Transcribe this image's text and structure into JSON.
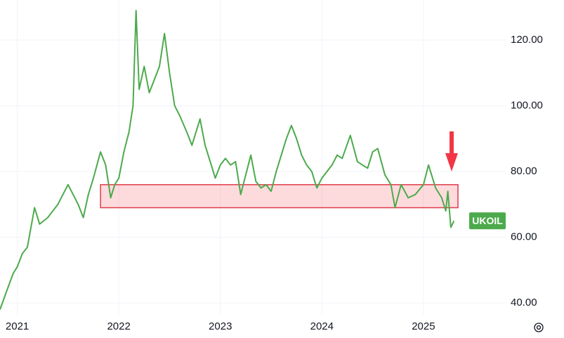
{
  "chart_data": {
    "type": "line",
    "x": [
      2020.83,
      2020.9,
      2020.96,
      2021.0,
      2021.05,
      2021.1,
      2021.17,
      2021.22,
      2021.3,
      2021.35,
      2021.4,
      2021.45,
      2021.5,
      2021.55,
      2021.6,
      2021.65,
      2021.7,
      2021.75,
      2021.82,
      2021.87,
      2021.92,
      2021.96,
      2022.0,
      2022.05,
      2022.1,
      2022.14,
      2022.17,
      2022.2,
      2022.25,
      2022.3,
      2022.35,
      2022.4,
      2022.45,
      2022.5,
      2022.55,
      2022.6,
      2022.67,
      2022.72,
      2022.8,
      2022.85,
      2022.9,
      2022.95,
      2023.0,
      2023.05,
      2023.1,
      2023.15,
      2023.2,
      2023.25,
      2023.3,
      2023.35,
      2023.4,
      2023.45,
      2023.5,
      2023.55,
      2023.6,
      2023.65,
      2023.7,
      2023.75,
      2023.8,
      2023.85,
      2023.9,
      2023.95,
      2024.0,
      2024.05,
      2024.1,
      2024.15,
      2024.2,
      2024.28,
      2024.35,
      2024.4,
      2024.45,
      2024.5,
      2024.55,
      2024.62,
      2024.68,
      2024.72,
      2024.78,
      2024.85,
      2024.92,
      2025.0,
      2025.05,
      2025.12,
      2025.18,
      2025.22,
      2025.24,
      2025.27,
      2025.3
    ],
    "values": [
      38,
      44,
      49,
      51,
      55,
      57,
      69,
      64,
      66,
      68,
      70,
      73,
      76,
      73,
      70,
      66,
      73,
      78,
      86,
      82,
      72,
      76,
      78,
      86,
      92,
      100,
      129,
      105,
      112,
      104,
      108,
      112,
      122,
      110,
      100,
      97,
      92,
      88,
      96,
      88,
      83,
      78,
      82,
      84,
      82,
      83,
      73,
      79,
      85,
      77,
      75,
      76,
      74,
      80,
      85,
      90,
      94,
      90,
      85,
      82,
      80,
      75,
      78,
      80,
      82,
      85,
      84,
      91,
      83,
      82,
      81,
      86,
      87,
      79,
      76,
      69,
      76,
      72,
      73,
      76,
      82,
      75,
      72,
      68,
      74,
      63,
      65
    ],
    "color": "#4caa4c",
    "xlim": [
      2020.83,
      2025.81
    ],
    "ylim": [
      36.4,
      132.2
    ],
    "xticks": [
      2021,
      2022,
      2023,
      2024,
      2025
    ],
    "yticks": [
      {
        "value": 40,
        "label": "40.00"
      },
      {
        "value": 60,
        "label": "60.00"
      },
      {
        "value": 80,
        "label": "80.00"
      },
      {
        "value": 100,
        "label": "100.00"
      },
      {
        "value": 120,
        "label": "120.00"
      }
    ],
    "grid": true,
    "band": {
      "x": [
        2021.82,
        2025.34
      ],
      "y": [
        69,
        76
      ]
    },
    "symbol_label": "UKOIL"
  }
}
